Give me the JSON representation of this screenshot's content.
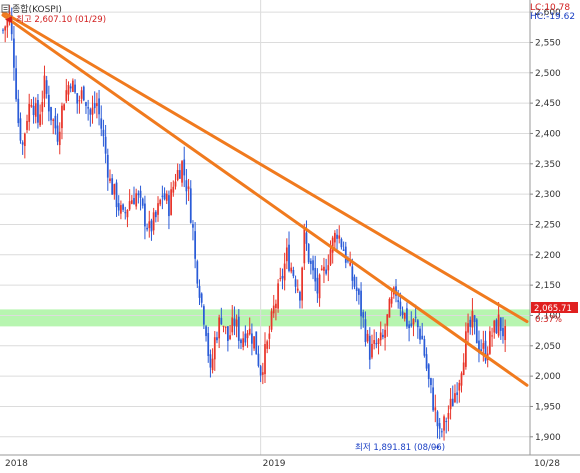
{
  "header": {
    "symbol_label": "종합(KOSPI)",
    "lc_label": "LC:10.78",
    "hc_label": "HC:-19.62"
  },
  "annotations": {
    "high_label": "최고 2,607.10 (01/29)",
    "low_label": "최저 1,891.81 (08/06)",
    "price_label": "2,065.71",
    "change_label": "0.37%"
  },
  "colors": {
    "up_candle": "#e8352a",
    "down_candle": "#2a5bd7",
    "trendline": "#f07a1e",
    "support_band": "#b7f5b0",
    "grid": "#dcdcdc",
    "high_text": "#d22020",
    "low_text": "#1a3fc4",
    "price_box": "#e02020",
    "lc_text": "#d22020",
    "hc_text": "#1a3fc4"
  },
  "chart_data": {
    "type": "candlestick",
    "title": "종합(KOSPI)",
    "ylim": [
      1870,
      2620
    ],
    "y_ticks": [
      1900,
      1950,
      2000,
      2050,
      2100,
      2150,
      2200,
      2250,
      2300,
      2350,
      2400,
      2450,
      2500,
      2550,
      2600
    ],
    "y_tick_labels": [
      "1,900",
      "1,950",
      "2,000",
      "2,050",
      "2,100",
      "2,150",
      "2,200",
      "2,250",
      "2,300",
      "2,350",
      "2,400",
      "2,450",
      "2,500",
      "2,550",
      "2,600"
    ],
    "x_labels": [
      {
        "label": "2018",
        "index": 0
      },
      {
        "label": "2019",
        "index": 118
      },
      {
        "label": "10/28",
        "index": 232
      }
    ],
    "grid": true,
    "close_points": [
      [
        0,
        2570
      ],
      [
        3,
        2595
      ],
      [
        5,
        2520
      ],
      [
        7,
        2420
      ],
      [
        9,
        2380
      ],
      [
        11,
        2430
      ],
      [
        13,
        2460
      ],
      [
        16,
        2420
      ],
      [
        19,
        2480
      ],
      [
        22,
        2430
      ],
      [
        25,
        2400
      ],
      [
        28,
        2460
      ],
      [
        31,
        2490
      ],
      [
        34,
        2450
      ],
      [
        37,
        2470
      ],
      [
        40,
        2430
      ],
      [
        43,
        2450
      ],
      [
        46,
        2390
      ],
      [
        49,
        2320
      ],
      [
        52,
        2290
      ],
      [
        55,
        2260
      ],
      [
        58,
        2290
      ],
      [
        61,
        2300
      ],
      [
        64,
        2270
      ],
      [
        67,
        2240
      ],
      [
        70,
        2260
      ],
      [
        73,
        2300
      ],
      [
        76,
        2280
      ],
      [
        79,
        2330
      ],
      [
        82,
        2350
      ],
      [
        85,
        2300
      ],
      [
        87,
        2240
      ],
      [
        88,
        2190
      ],
      [
        89,
        2170
      ],
      [
        91,
        2120
      ],
      [
        93,
        2080
      ],
      [
        95,
        2000
      ],
      [
        97,
        2060
      ],
      [
        100,
        2100
      ],
      [
        103,
        2060
      ],
      [
        106,
        2090
      ],
      [
        109,
        2060
      ],
      [
        112,
        2080
      ],
      [
        115,
        2060
      ],
      [
        118,
        2010
      ],
      [
        121,
        2050
      ],
      [
        124,
        2110
      ],
      [
        127,
        2150
      ],
      [
        130,
        2200
      ],
      [
        133,
        2170
      ],
      [
        136,
        2140
      ],
      [
        138,
        2230
      ],
      [
        141,
        2180
      ],
      [
        144,
        2140
      ],
      [
        147,
        2170
      ],
      [
        150,
        2210
      ],
      [
        153,
        2240
      ],
      [
        156,
        2210
      ],
      [
        159,
        2170
      ],
      [
        162,
        2140
      ],
      [
        165,
        2090
      ],
      [
        168,
        2040
      ],
      [
        171,
        2050
      ],
      [
        174,
        2060
      ],
      [
        177,
        2110
      ],
      [
        180,
        2140
      ],
      [
        183,
        2110
      ],
      [
        186,
        2080
      ],
      [
        189,
        2090
      ],
      [
        192,
        2060
      ],
      [
        195,
        1990
      ],
      [
        198,
        1940
      ],
      [
        200,
        1900
      ],
      [
        203,
        1930
      ],
      [
        206,
        1960
      ],
      [
        209,
        2000
      ],
      [
        212,
        2060
      ],
      [
        215,
        2090
      ],
      [
        218,
        2050
      ],
      [
        221,
        2040
      ],
      [
        224,
        2070
      ],
      [
        227,
        2090
      ],
      [
        230,
        2066
      ]
    ],
    "trendlines": [
      {
        "points": [
          [
            0,
            2600
          ],
          [
            240,
            2090
          ]
        ]
      },
      {
        "points": [
          [
            0,
            2595
          ],
          [
            240,
            1985
          ]
        ]
      }
    ],
    "support_band": [
      2082,
      2110
    ],
    "high": {
      "value": 2607.1,
      "date": "01/29",
      "index": 2
    },
    "low": {
      "value": 1891.81,
      "date": "08/06",
      "index": 200
    },
    "last": {
      "value": 2065.71,
      "change_pct": 0.37
    }
  }
}
